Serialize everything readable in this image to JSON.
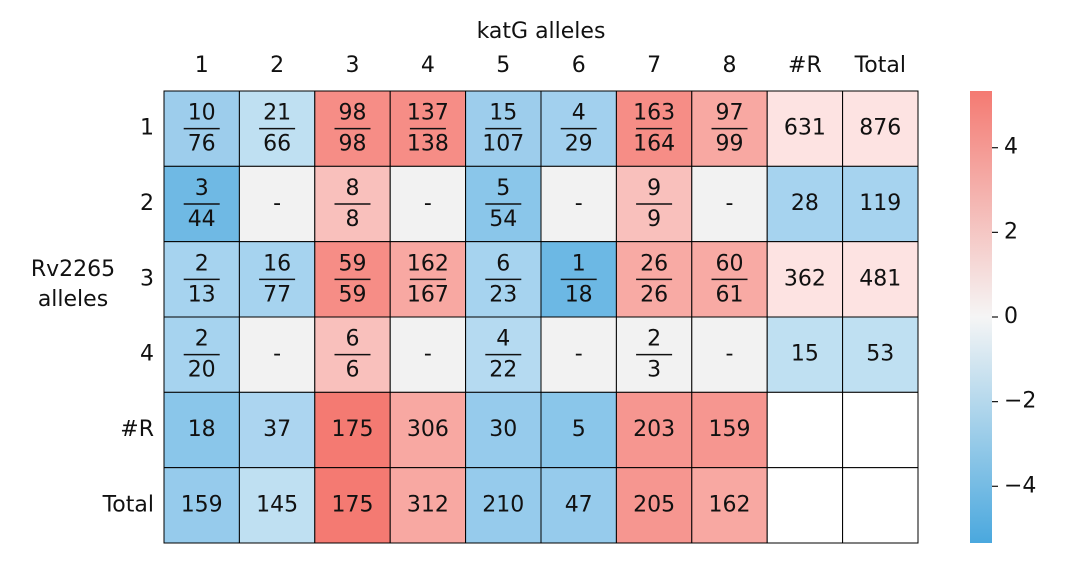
{
  "title": "katG alleles",
  "row_axis_label": [
    "Rv2265",
    "alleles"
  ],
  "columns": [
    "1",
    "2",
    "3",
    "4",
    "5",
    "6",
    "7",
    "8",
    "#R",
    "Total"
  ],
  "rows": [
    {
      "label": "1",
      "cells": [
        {
          "num": 10,
          "den": 76
        },
        {
          "num": 21,
          "den": 66
        },
        {
          "num": 98,
          "den": 98
        },
        {
          "num": 137,
          "den": 138
        },
        {
          "num": 15,
          "den": 107
        },
        {
          "num": 4,
          "den": 29
        },
        {
          "num": 163,
          "den": 164
        },
        {
          "num": 97,
          "den": 99
        },
        631,
        876
      ],
      "colors": [
        "#9dcdec",
        "#bfe0f2",
        "#f68d86",
        "#f68d86",
        "#9dcdec",
        "#a2d0ee",
        "#f68d86",
        "#f8a8a2",
        "#fde3e2",
        "#fde3e2"
      ]
    },
    {
      "label": "2",
      "cells": [
        {
          "num": 3,
          "den": 44
        },
        "-",
        {
          "num": 8,
          "den": 8
        },
        "-",
        {
          "num": 5,
          "den": 54
        },
        "-",
        {
          "num": 9,
          "den": 9
        },
        "-",
        28,
        119
      ],
      "colors": [
        "#6fb9e4",
        "#f2f2f2",
        "#f9c0bc",
        "#f2f2f2",
        "#8ac6ea",
        "#f2f2f2",
        "#f9c0bc",
        "#f2f2f2",
        "#a6d3ef",
        "#a6d3ef"
      ]
    },
    {
      "label": "3",
      "cells": [
        {
          "num": 2,
          "den": 13
        },
        {
          "num": 16,
          "den": 77
        },
        {
          "num": 59,
          "den": 59
        },
        {
          "num": 162,
          "den": 167
        },
        {
          "num": 6,
          "den": 23
        },
        {
          "num": 1,
          "den": 18
        },
        {
          "num": 26,
          "den": 26
        },
        {
          "num": 60,
          "den": 61
        },
        362,
        481
      ],
      "colors": [
        "#a6d3ef",
        "#a6d3ef",
        "#f68d86",
        "#f8a8a2",
        "#a6d3ef",
        "#6cb8e4",
        "#f8aaa4",
        "#f8aaa4",
        "#fde3e2",
        "#fde3e2"
      ]
    },
    {
      "label": "4",
      "cells": [
        {
          "num": 2,
          "den": 20
        },
        "-",
        {
          "num": 6,
          "den": 6
        },
        "-",
        {
          "num": 4,
          "den": 22
        },
        "-",
        {
          "num": 2,
          "den": 3
        },
        "-",
        15,
        53
      ],
      "colors": [
        "#a6d3ef",
        "#f2f2f2",
        "#f9c0bc",
        "#f2f2f2",
        "#b5daf1",
        "#f2f2f2",
        "#f2f2f2",
        "#f2f2f2",
        "#bfe0f2",
        "#bfe0f2"
      ]
    },
    {
      "label": "#R",
      "cells": [
        18,
        37,
        175,
        306,
        30,
        5,
        203,
        159,
        null,
        null
      ],
      "colors": [
        "#8ac6ea",
        "#acd5f0",
        "#f47a72",
        "#f8a8a2",
        "#96cbec",
        "#8ac6ea",
        "#f69690",
        "#f69690",
        "#ffffff",
        "#ffffff"
      ]
    },
    {
      "label": "Total",
      "cells": [
        159,
        145,
        175,
        312,
        210,
        47,
        205,
        162,
        null,
        null
      ],
      "colors": [
        "#96cbec",
        "#bfe0f2",
        "#f47a72",
        "#f8a8a2",
        "#96cbec",
        "#96cbec",
        "#f69690",
        "#f8a8a2",
        "#ffffff",
        "#ffffff"
      ]
    }
  ],
  "colorbar": {
    "lim": [
      -5.34,
      5.34
    ],
    "colors": [
      "#4aa8de",
      "#f5f5f5",
      "#f47a72"
    ],
    "ticks": [
      {
        "value": -4,
        "label": "−4"
      },
      {
        "value": -2,
        "label": "−2"
      },
      0,
      2,
      4
    ]
  }
}
